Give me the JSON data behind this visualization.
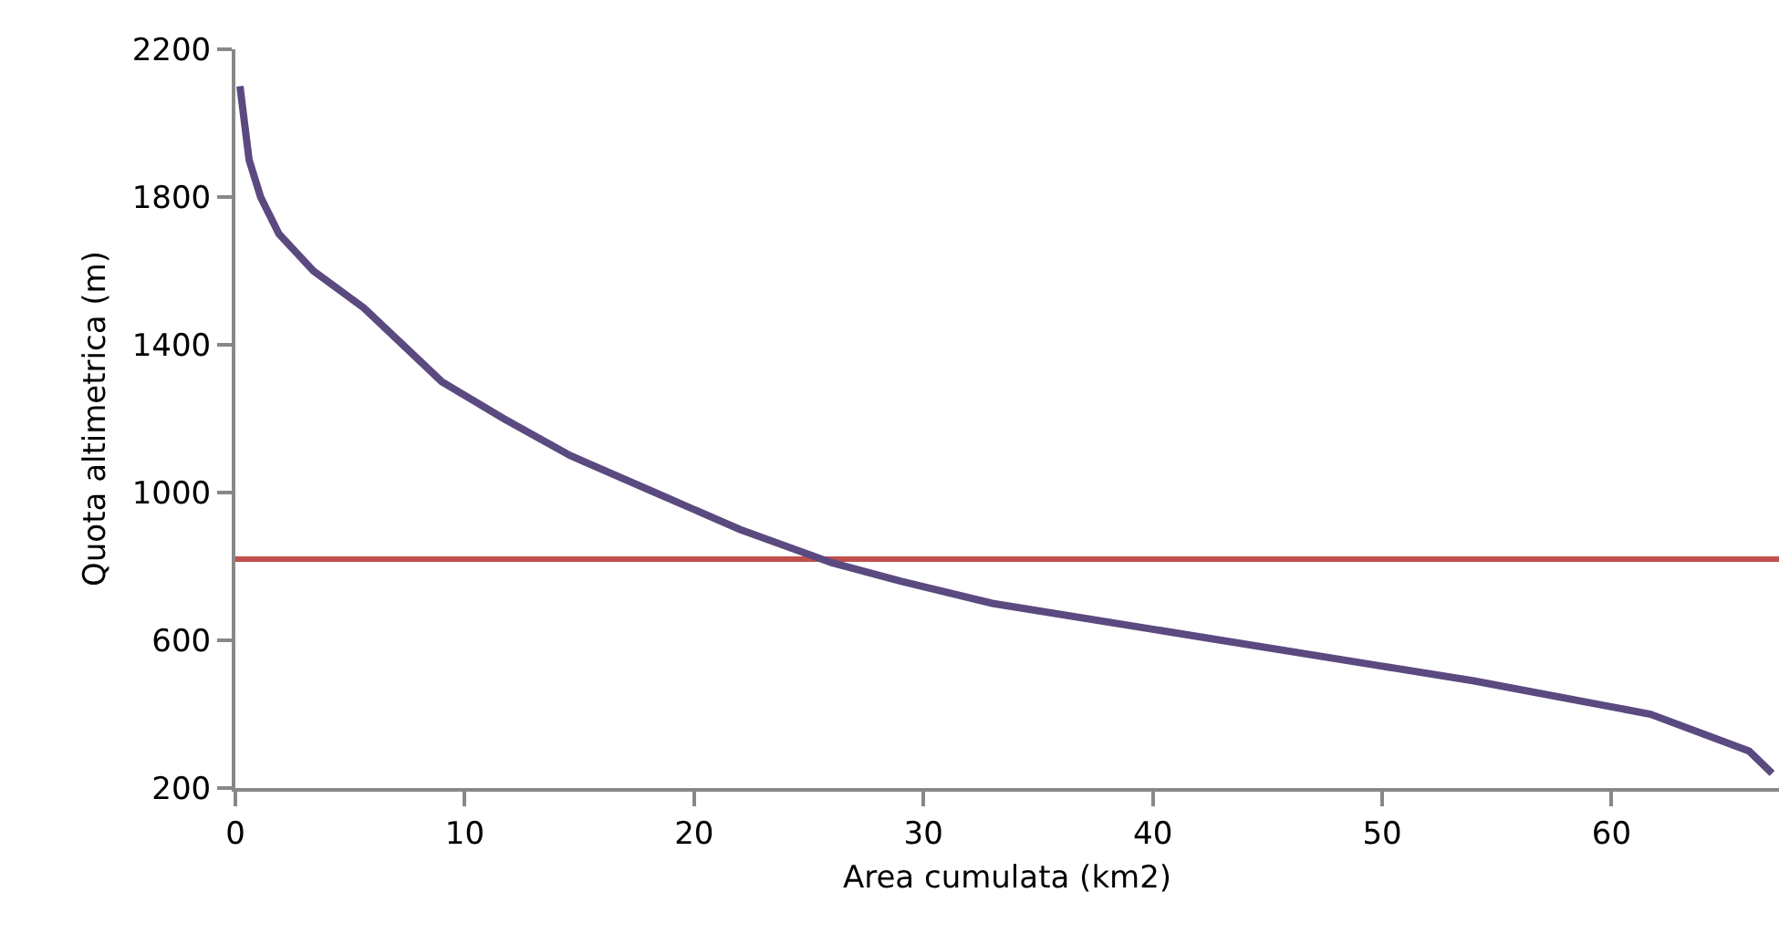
{
  "chart_data": {
    "type": "line",
    "xlabel": "Area cumulata (km2)",
    "ylabel": "Quota altimetrica (m)",
    "x": [
      0.2,
      0.6,
      1.1,
      1.9,
      3.4,
      5.6,
      7.3,
      9,
      11.7,
      14.6,
      18.3,
      22,
      26,
      29,
      33,
      42,
      50,
      54,
      61.7,
      66,
      67
    ],
    "series": [
      {
        "color": "#5b4a80",
        "values": [
          2100,
          1900,
          1800,
          1700,
          1600,
          1500,
          1400,
          1300,
          1200,
          1100,
          1000,
          900,
          810,
          760,
          700,
          610,
          530,
          490,
          400,
          300,
          240
        ]
      }
    ],
    "xlim": [
      0,
      67.3
    ],
    "xticks": [
      0,
      10,
      20,
      30,
      40,
      50,
      60
    ],
    "ylim": [
      200,
      2200
    ],
    "yticks": [
      200,
      600,
      1000,
      1400,
      1800,
      2200
    ],
    "ref_lines": [
      {
        "axis": "y",
        "value": 820,
        "color": "#c0504d"
      }
    ],
    "grid": false,
    "marker": "none",
    "line_style": "solid"
  }
}
